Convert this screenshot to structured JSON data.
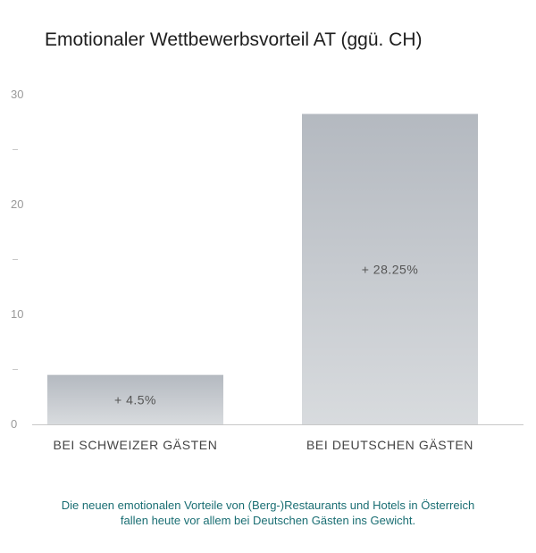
{
  "chart_data": {
    "type": "bar",
    "title": "Emotionaler Wettbewerbsvorteil AT (ggü. CH)",
    "categories": [
      "BEI SCHWEIZER GÄSTEN",
      "BEI DEUTSCHEN GÄSTEN"
    ],
    "values": [
      4.5,
      28.25
    ],
    "value_labels": [
      "+ 4.5%",
      "+ 28.25%"
    ],
    "ylim": [
      0,
      30
    ],
    "y_ticks": [
      0,
      10,
      20,
      30
    ],
    "y_tick_labels": [
      "0",
      "10",
      "20",
      "30"
    ],
    "y_minor_ticks": [
      5,
      15,
      25
    ],
    "xlabel": "",
    "ylabel": "",
    "grid": false,
    "colors": {
      "bar_top": "#b4b9c0",
      "bar_bottom": "#d8dbde",
      "axis": "#c8c8c8",
      "tick_label": "#9a9a9a",
      "category_label": "#444444",
      "value_label": "#555555"
    }
  },
  "caption": {
    "line1": "Die neuen emotionalen Vorteile von (Berg-)Restaurants und Hotels in Österreich",
    "line2": "fallen heute vor allem bei Deutschen Gästen ins Gewicht."
  }
}
